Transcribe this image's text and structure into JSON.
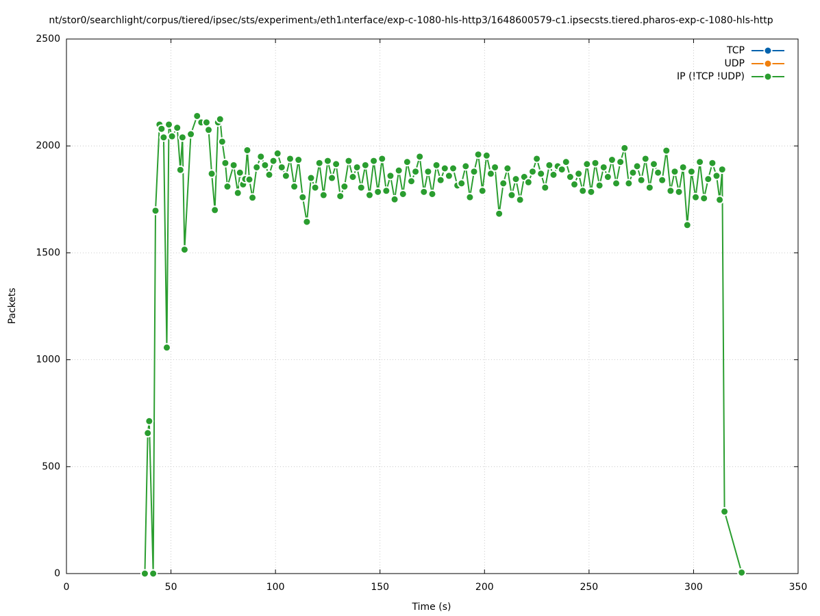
{
  "chart_data": {
    "type": "line",
    "title": "nt/stor0/searchlight/corpus/tiered/ipsec/sts/experiment₃/eth1ᵢnterface/exp-c-1080-hls-http3/1648600579-c1.ipsecsts.tiered.pharos-exp-c-1080-hls-http",
    "x_label": "Time (s)",
    "y_label": "Packets",
    "xlim": [
      0,
      350
    ],
    "xticks": [
      0,
      50,
      100,
      150,
      200,
      250,
      300,
      350
    ],
    "ylim": [
      0,
      2500
    ],
    "yticks": [
      0,
      500,
      1000,
      1500,
      2000,
      2500
    ],
    "grid": true,
    "legend": "top-right",
    "series": [
      {
        "name": "TCP",
        "color": "#0062ad",
        "x": [],
        "values": []
      },
      {
        "name": "UDP",
        "color": "#f07f0c",
        "x": [],
        "values": []
      },
      {
        "name": "IP (!TCP  !UDP)",
        "color": "#2a9d2f",
        "x": [
          37.5,
          38.9,
          39.6,
          41.5,
          42.6,
          44.5,
          45.5,
          46.5,
          48,
          49,
          50.5,
          53,
          54.5,
          55.5,
          56.5,
          59.5,
          62.5,
          64.5,
          67,
          68,
          69.5,
          71,
          72.5,
          73.5,
          74.5,
          76,
          77,
          80,
          82,
          83,
          84.5,
          85.5,
          86.5,
          87.5,
          89,
          91,
          93,
          95,
          97,
          99,
          101,
          103,
          105,
          107,
          109,
          111,
          113,
          115,
          117,
          119,
          121,
          123,
          125,
          127,
          129,
          131,
          133,
          135,
          137,
          139,
          141,
          143,
          145,
          147,
          149,
          151,
          153,
          155,
          157,
          159,
          161,
          163,
          165,
          167,
          169,
          171,
          173,
          175,
          177,
          179,
          181,
          183,
          185,
          187,
          189,
          191,
          193,
          195,
          197,
          199,
          201,
          203,
          205,
          207,
          209,
          211,
          213,
          215,
          217,
          219,
          221,
          223,
          225,
          227,
          229,
          231,
          233,
          235,
          237,
          239,
          241,
          243,
          245,
          247,
          249,
          251,
          253,
          255,
          257,
          259,
          261,
          263,
          265,
          267,
          269,
          271,
          273,
          275,
          277,
          279,
          281,
          283,
          285,
          287,
          289,
          291,
          293,
          295,
          297,
          299,
          301,
          303,
          305,
          307,
          309,
          311,
          312.5,
          313.7,
          314.8,
          323
        ],
        "values": [
          0,
          657,
          713,
          0,
          1697,
          2100,
          2080,
          2040,
          1057,
          2100,
          2045,
          2085,
          1888,
          2040,
          1515,
          2055,
          2140,
          2110,
          2110,
          2075,
          1870,
          1700,
          2110,
          2125,
          2020,
          1920,
          1810,
          1910,
          1780,
          1875,
          1820,
          1845,
          1980,
          1843,
          1758,
          1900,
          1950,
          1910,
          1865,
          1930,
          1965,
          1900,
          1860,
          1940,
          1810,
          1935,
          1760,
          1645,
          1850,
          1805,
          1920,
          1770,
          1930,
          1850,
          1915,
          1765,
          1810,
          1930,
          1855,
          1900,
          1805,
          1910,
          1770,
          1930,
          1785,
          1940,
          1790,
          1860,
          1750,
          1885,
          1775,
          1925,
          1835,
          1880,
          1950,
          1785,
          1880,
          1775,
          1910,
          1840,
          1895,
          1860,
          1895,
          1815,
          1825,
          1905,
          1760,
          1880,
          1960,
          1790,
          1955,
          1870,
          1900,
          1683,
          1825,
          1895,
          1770,
          1845,
          1748,
          1855,
          1830,
          1880,
          1940,
          1870,
          1805,
          1910,
          1865,
          1905,
          1890,
          1925,
          1855,
          1820,
          1870,
          1790,
          1915,
          1785,
          1920,
          1815,
          1900,
          1855,
          1935,
          1825,
          1925,
          1990,
          1825,
          1875,
          1905,
          1840,
          1940,
          1805,
          1915,
          1875,
          1840,
          1978,
          1790,
          1880,
          1785,
          1900,
          1630,
          1880,
          1760,
          1925,
          1755,
          1845,
          1920,
          1860,
          1748,
          1890,
          290,
          5
        ]
      }
    ]
  }
}
